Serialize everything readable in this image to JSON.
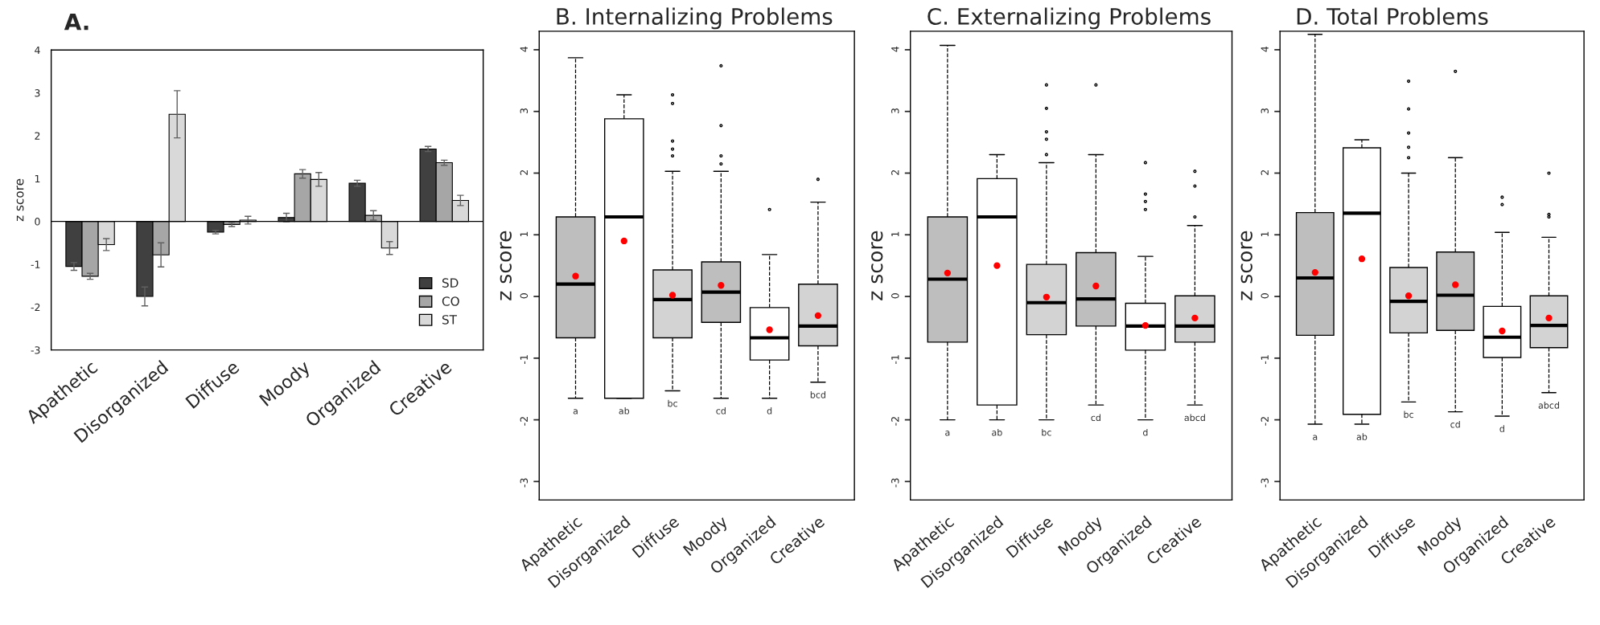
{
  "chart_data": [
    {
      "type": "bar",
      "title": "A.",
      "ylabel": "z score",
      "categories": [
        "Apathetic",
        "Disorganized",
        "Diffuse",
        "Moody",
        "Organized",
        "Creative"
      ],
      "series": [
        {
          "name": "SD",
          "color": "#404040",
          "values": [
            -1.05,
            -1.75,
            -0.25,
            0.09,
            0.89,
            1.69
          ],
          "errors": [
            0.09,
            0.22,
            0.04,
            0.1,
            0.07,
            0.06
          ]
        },
        {
          "name": "CO",
          "color": "#a6a6a6",
          "values": [
            -1.28,
            -0.78,
            -0.07,
            1.11,
            0.14,
            1.37
          ],
          "errors": [
            0.07,
            0.28,
            0.05,
            0.1,
            0.11,
            0.06
          ]
        },
        {
          "name": "ST",
          "color": "#d9d9d9",
          "values": [
            -0.54,
            2.5,
            0.03,
            0.98,
            -0.62,
            0.49
          ],
          "errors": [
            0.14,
            0.55,
            0.09,
            0.16,
            0.15,
            0.12
          ]
        }
      ],
      "ylim": [
        -3,
        4
      ],
      "yticks": [
        -3,
        -2,
        -1,
        0,
        1,
        2,
        3,
        4
      ],
      "ref_lines": [
        {
          "axis": "y",
          "value": 0,
          "color": "#000000"
        }
      ],
      "legend": "bottom right",
      "grid": false
    },
    {
      "type": "box",
      "title": "B. Internalizing Problems",
      "ylabel": "z score",
      "categories": [
        "Apathetic",
        "Disorganized",
        "Diffuse",
        "Moody",
        "Organized",
        "Creative"
      ],
      "colors": [
        "#bebebe",
        "#ffffff",
        "#d3d3d3",
        "#bebebe",
        "#ffffff",
        "#d3d3d3"
      ],
      "boxes": [
        {
          "low": -1.65,
          "q1": -0.67,
          "median": 0.2,
          "q3": 1.29,
          "high": 3.87,
          "mean": 0.33
        },
        {
          "low": -1.65,
          "q1": -1.65,
          "median": 1.29,
          "q3": 2.88,
          "high": 3.27,
          "mean": 0.9
        },
        {
          "low": -1.53,
          "q1": -0.67,
          "median": -0.05,
          "q3": 0.43,
          "high": 2.03,
          "mean": 0.02,
          "outliers": [
            3.27,
            3.13,
            2.52,
            2.39,
            2.28
          ]
        },
        {
          "low": -1.65,
          "q1": -0.42,
          "median": 0.07,
          "q3": 0.56,
          "high": 2.03,
          "mean": 0.18,
          "outliers": [
            3.74,
            2.77,
            2.28,
            2.15
          ]
        },
        {
          "low": -1.65,
          "q1": -1.03,
          "median": -0.67,
          "q3": -0.18,
          "high": 0.68,
          "mean": -0.54,
          "outliers": [
            1.41
          ]
        },
        {
          "low": -1.39,
          "q1": -0.8,
          "median": -0.48,
          "q3": 0.2,
          "high": 1.53,
          "mean": -0.31,
          "outliers": [
            1.9
          ]
        }
      ],
      "annotations": [
        "a",
        "ab",
        "bc",
        "cd",
        "d",
        "bcd"
      ],
      "ylim": [
        -3.3,
        4.3
      ],
      "yticks": [
        -3,
        -2,
        -1,
        0,
        1,
        2,
        3,
        4
      ],
      "grid": false
    },
    {
      "type": "box",
      "title": "C. Externalizing Problems",
      "ylabel": "z score",
      "categories": [
        "Apathetic",
        "Disorganized",
        "Diffuse",
        "Moody",
        "Organized",
        "Creative"
      ],
      "colors": [
        "#bebebe",
        "#ffffff",
        "#d3d3d3",
        "#bebebe",
        "#ffffff",
        "#d3d3d3"
      ],
      "boxes": [
        {
          "low": -2.0,
          "q1": -0.74,
          "median": 0.28,
          "q3": 1.29,
          "high": 4.07,
          "mean": 0.38
        },
        {
          "low": -2.0,
          "q1": -1.76,
          "median": 1.29,
          "q3": 1.91,
          "high": 2.3,
          "mean": 0.5
        },
        {
          "low": -2.0,
          "q1": -0.62,
          "median": -0.1,
          "q3": 0.52,
          "high": 2.17,
          "mean": -0.01,
          "outliers": [
            3.43,
            3.05,
            2.67,
            2.55,
            2.3
          ]
        },
        {
          "low": -1.76,
          "q1": -0.48,
          "median": -0.04,
          "q3": 0.71,
          "high": 2.3,
          "mean": 0.17,
          "outliers": [
            3.43
          ]
        },
        {
          "low": -2.0,
          "q1": -0.87,
          "median": -0.48,
          "q3": -0.11,
          "high": 0.65,
          "mean": -0.47,
          "outliers": [
            2.17,
            1.66,
            1.54,
            1.41
          ]
        },
        {
          "low": -1.76,
          "q1": -0.74,
          "median": -0.48,
          "q3": 0.01,
          "high": 1.15,
          "mean": -0.35,
          "outliers": [
            2.03,
            1.79,
            1.29
          ]
        }
      ],
      "annotations": [
        "a",
        "ab",
        "bc",
        "cd",
        "d",
        "abcd"
      ],
      "ylim": [
        -3.3,
        4.3
      ],
      "yticks": [
        -3,
        -2,
        -1,
        0,
        1,
        2,
        3,
        4
      ],
      "grid": false
    },
    {
      "type": "box",
      "title": "D. Total Problems",
      "ylabel": "z score",
      "categories": [
        "Apathetic",
        "Disorganized",
        "Diffuse",
        "Moody",
        "Organized",
        "Creative"
      ],
      "colors": [
        "#bebebe",
        "#ffffff",
        "#d3d3d3",
        "#bebebe",
        "#ffffff",
        "#d3d3d3"
      ],
      "boxes": [
        {
          "low": -2.07,
          "q1": -0.63,
          "median": 0.3,
          "q3": 1.36,
          "high": 4.25,
          "mean": 0.39
        },
        {
          "low": -2.07,
          "q1": -1.91,
          "median": 1.35,
          "q3": 2.41,
          "high": 2.54,
          "mean": 0.61
        },
        {
          "low": -1.71,
          "q1": -0.59,
          "median": -0.08,
          "q3": 0.47,
          "high": 2.0,
          "mean": 0.01,
          "outliers": [
            3.49,
            3.04,
            2.65,
            2.42,
            2.25
          ]
        },
        {
          "low": -1.87,
          "q1": -0.55,
          "median": 0.02,
          "q3": 0.72,
          "high": 2.25,
          "mean": 0.19,
          "outliers": [
            3.65
          ]
        },
        {
          "low": -1.94,
          "q1": -0.99,
          "median": -0.66,
          "q3": -0.16,
          "high": 1.04,
          "mean": -0.56,
          "outliers": [
            1.61,
            1.49
          ]
        },
        {
          "low": -1.56,
          "q1": -0.83,
          "median": -0.47,
          "q3": 0.01,
          "high": 0.96,
          "mean": -0.35,
          "outliers": [
            2.0,
            1.33,
            1.29
          ]
        }
      ],
      "annotations": [
        "a",
        "ab",
        "bc",
        "cd",
        "d",
        "abcd"
      ],
      "ylim": [
        -3.3,
        4.3
      ],
      "yticks": [
        -3,
        -2,
        -1,
        0,
        1,
        2,
        3,
        4
      ],
      "grid": false
    }
  ]
}
